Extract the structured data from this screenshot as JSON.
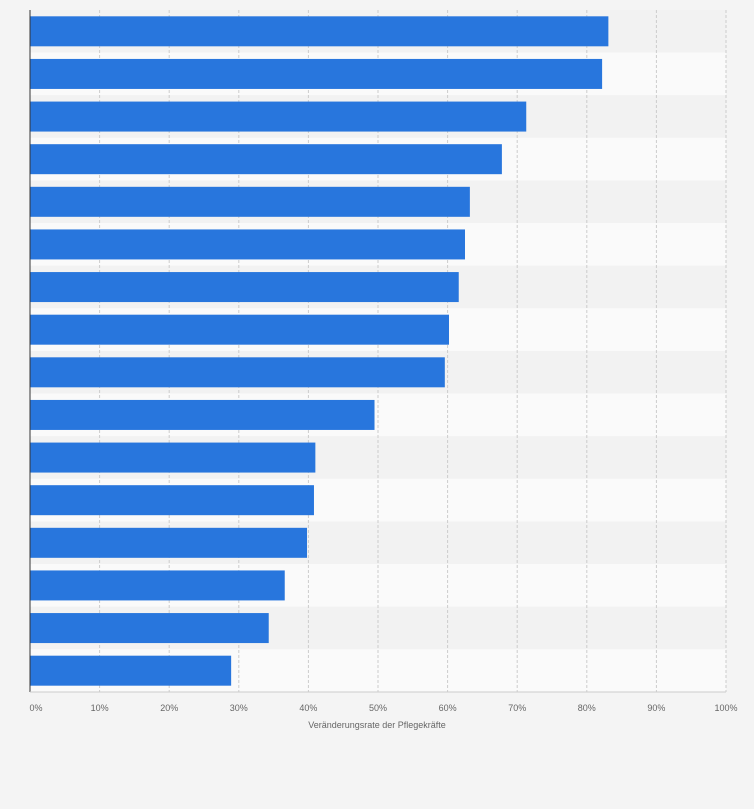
{
  "chart_data": {
    "type": "bar",
    "orientation": "horizontal",
    "categories": [
      "",
      "",
      "",
      "",
      "",
      "",
      "",
      "",
      "",
      "",
      "",
      "",
      "",
      "",
      "",
      ""
    ],
    "values": [
      83.1,
      82.2,
      71.3,
      67.8,
      63.2,
      62.5,
      61.6,
      60.2,
      59.6,
      49.5,
      41.0,
      40.8,
      39.8,
      36.6,
      34.3,
      28.9
    ],
    "xlabel": "Veränderungsrate der Pflegekräfte",
    "ylabel": "",
    "xlim": [
      0,
      100
    ],
    "tick_labels": [
      "0%",
      "10%",
      "20%",
      "30%",
      "40%",
      "50%",
      "60%",
      "70%",
      "80%",
      "90%",
      "100%"
    ],
    "grid": true,
    "legend": "none"
  },
  "colors": {
    "bar": "#2876dd",
    "band_light": "#fafafa",
    "band_dark": "#f2f2f2",
    "grid": "#cccccc",
    "axis": "#333333",
    "text": "#666666"
  }
}
